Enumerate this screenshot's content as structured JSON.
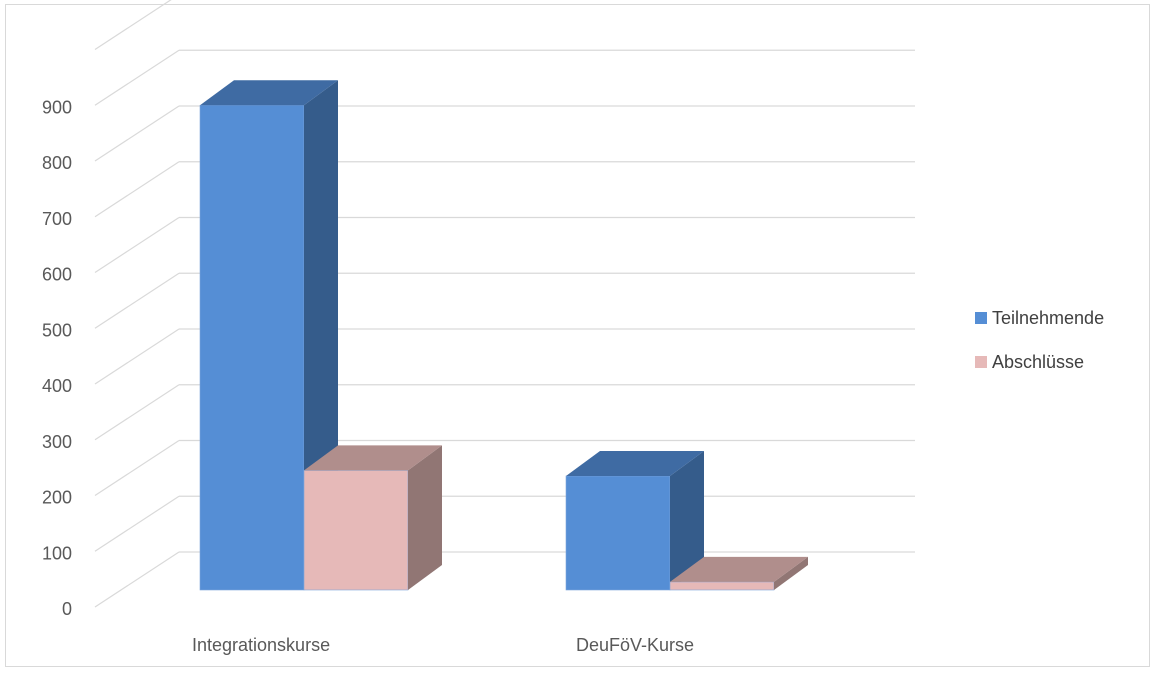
{
  "chart_data": {
    "type": "bar",
    "title": "",
    "xlabel": "",
    "ylabel": "",
    "categories": [
      "Integrationskurse",
      "DeuFöV-Kurse"
    ],
    "series": [
      {
        "name": "Teilnehmende",
        "values": [
          900,
          235
        ]
      },
      {
        "name": "Abschlüsse",
        "values": [
          245,
          45
        ]
      }
    ],
    "ylim": [
      0,
      900
    ],
    "yticks": [
      "0",
      "100",
      "200",
      "300",
      "400",
      "500",
      "600",
      "700",
      "800",
      "900"
    ],
    "grid": true,
    "legend": "right",
    "colors": {
      "Teilnehmende": {
        "front": "#558ed5",
        "side": "#355c8b",
        "top": "#3f6ba3"
      },
      "Abschlüsse": {
        "front": "#e6b9b8",
        "side": "#917674",
        "top": "#b08e8c"
      }
    }
  }
}
